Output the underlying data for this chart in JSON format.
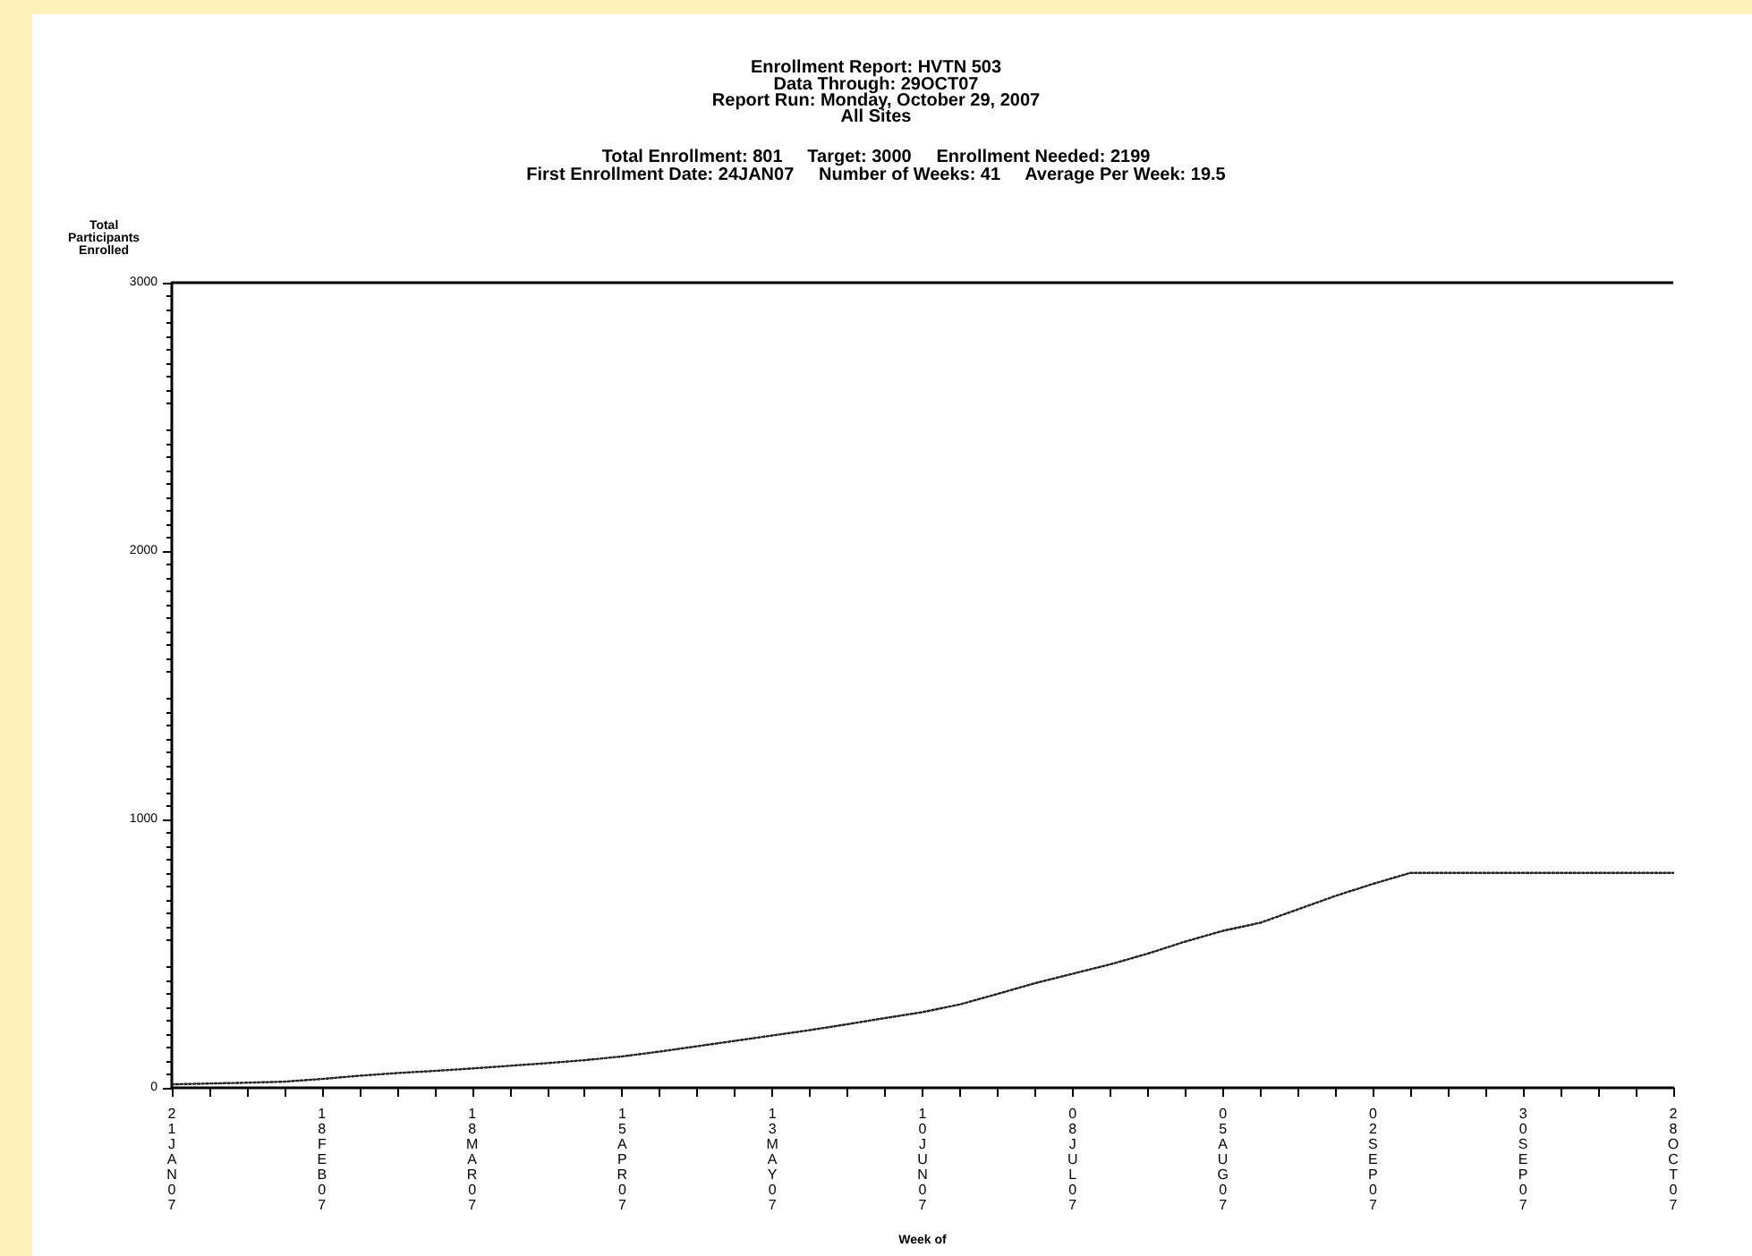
{
  "chart_data": {
    "type": "line",
    "title": "Enrollment Report: HVTN 503",
    "subtitle": "Data Through: 29OCT07\nReport Run: Monday, October 29, 2007\nAll Sites",
    "annotations": [
      "Total Enrollment: 801     Target: 3000     Enrollment Needed: 2199",
      "First Enrollment Date: 24JAN07     Number of Weeks: 41     Average Per Week: 19.5"
    ],
    "xlabel": "Week of",
    "ylabel": "Total\nParticipants\nEnrolled",
    "categories": [
      "21JAN07",
      null,
      null,
      null,
      "18FEB07",
      null,
      null,
      null,
      "18MAR07",
      null,
      null,
      null,
      "15APR07",
      null,
      null,
      null,
      "13MAY07",
      null,
      null,
      null,
      "10JUN07",
      null,
      null,
      null,
      "08JUL07",
      null,
      null,
      null,
      "05AUG07",
      null,
      null,
      null,
      "02SEP07",
      null,
      null,
      null,
      "30SEP07",
      null,
      null,
      null,
      "28OCT07"
    ],
    "series": [
      {
        "color": "#222222",
        "values": [
          13,
          16,
          19,
          23,
          33,
          45,
          55,
          63,
          72,
          82,
          92,
          103,
          117,
          135,
          155,
          175,
          195,
          215,
          237,
          260,
          282,
          311,
          350,
          390,
          425,
          460,
          500,
          545,
          585,
          615,
          665,
          715,
          760,
          801,
          801,
          801,
          801,
          801,
          801,
          801,
          801
        ]
      }
    ],
    "ylim": [
      0,
      3000
    ],
    "yticks": [
      0,
      1000,
      2000,
      3000
    ],
    "ref_lines": [
      {
        "axis": "y",
        "value": 3000,
        "color": "#000000",
        "line_style": "solid"
      }
    ],
    "grid": false,
    "marker": "none",
    "line_style": "dotted"
  }
}
